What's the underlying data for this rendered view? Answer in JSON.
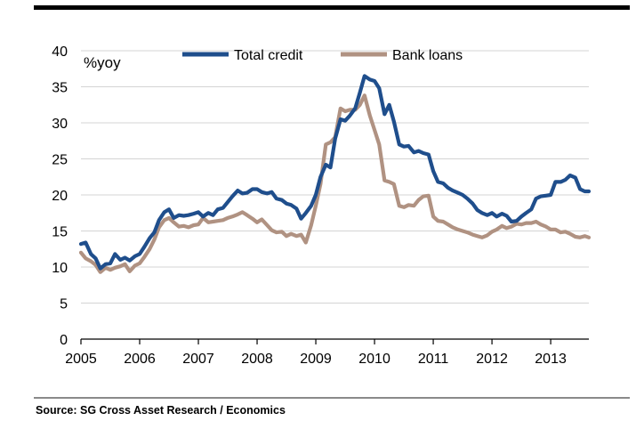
{
  "source": "Source: SG Cross Asset Research / Economics",
  "chart_data": {
    "type": "line",
    "title": "",
    "xlabel": "",
    "ylabel": "%yoy",
    "ylim": [
      0,
      40
    ],
    "yticks": [
      0,
      5,
      10,
      15,
      20,
      25,
      30,
      35,
      40
    ],
    "xlim": [
      2005,
      2013.65
    ],
    "xticks": [
      "2005",
      "2006",
      "2007",
      "2008",
      "2009",
      "2010",
      "2011",
      "2012",
      "2013"
    ],
    "grid": true,
    "legend": "top-center",
    "series": [
      {
        "name": "Total credit",
        "color": "#1f4e8c",
        "points": [
          [
            2005.0,
            13.2
          ],
          [
            2005.08,
            13.4
          ],
          [
            2005.17,
            11.8
          ],
          [
            2005.25,
            11.2
          ],
          [
            2005.33,
            9.8
          ],
          [
            2005.42,
            10.4
          ],
          [
            2005.5,
            10.5
          ],
          [
            2005.58,
            11.8
          ],
          [
            2005.67,
            11.0
          ],
          [
            2005.75,
            11.3
          ],
          [
            2005.83,
            10.9
          ],
          [
            2005.92,
            11.5
          ],
          [
            2006.0,
            11.8
          ],
          [
            2006.08,
            12.8
          ],
          [
            2006.17,
            14.0
          ],
          [
            2006.25,
            14.8
          ],
          [
            2006.33,
            16.5
          ],
          [
            2006.42,
            17.6
          ],
          [
            2006.5,
            18.0
          ],
          [
            2006.58,
            16.8
          ],
          [
            2006.67,
            17.2
          ],
          [
            2006.75,
            17.1
          ],
          [
            2006.83,
            17.2
          ],
          [
            2006.92,
            17.4
          ],
          [
            2007.0,
            17.6
          ],
          [
            2007.08,
            17.0
          ],
          [
            2007.17,
            17.5
          ],
          [
            2007.25,
            17.2
          ],
          [
            2007.33,
            18.0
          ],
          [
            2007.42,
            18.2
          ],
          [
            2007.5,
            19.0
          ],
          [
            2007.58,
            19.8
          ],
          [
            2007.67,
            20.6
          ],
          [
            2007.75,
            20.2
          ],
          [
            2007.83,
            20.3
          ],
          [
            2007.92,
            20.8
          ],
          [
            2008.0,
            20.8
          ],
          [
            2008.08,
            20.4
          ],
          [
            2008.17,
            20.2
          ],
          [
            2008.25,
            20.4
          ],
          [
            2008.33,
            19.5
          ],
          [
            2008.42,
            19.3
          ],
          [
            2008.5,
            18.8
          ],
          [
            2008.58,
            18.6
          ],
          [
            2008.67,
            18.1
          ],
          [
            2008.75,
            16.7
          ],
          [
            2008.83,
            17.5
          ],
          [
            2008.92,
            18.5
          ],
          [
            2009.0,
            20.0
          ],
          [
            2009.08,
            22.5
          ],
          [
            2009.17,
            24.2
          ],
          [
            2009.25,
            23.8
          ],
          [
            2009.33,
            27.8
          ],
          [
            2009.42,
            30.5
          ],
          [
            2009.5,
            30.3
          ],
          [
            2009.58,
            31.0
          ],
          [
            2009.67,
            32.0
          ],
          [
            2009.75,
            34.2
          ],
          [
            2009.83,
            36.5
          ],
          [
            2009.92,
            36.0
          ],
          [
            2010.0,
            35.8
          ],
          [
            2010.08,
            34.8
          ],
          [
            2010.17,
            31.2
          ],
          [
            2010.25,
            32.5
          ],
          [
            2010.33,
            30.2
          ],
          [
            2010.42,
            27.0
          ],
          [
            2010.5,
            26.7
          ],
          [
            2010.58,
            26.8
          ],
          [
            2010.67,
            25.9
          ],
          [
            2010.75,
            26.1
          ],
          [
            2010.83,
            25.8
          ],
          [
            2010.92,
            25.6
          ],
          [
            2011.0,
            23.3
          ],
          [
            2011.08,
            21.8
          ],
          [
            2011.17,
            21.6
          ],
          [
            2011.25,
            21.0
          ],
          [
            2011.33,
            20.6
          ],
          [
            2011.42,
            20.3
          ],
          [
            2011.5,
            20.0
          ],
          [
            2011.58,
            19.5
          ],
          [
            2011.67,
            18.8
          ],
          [
            2011.75,
            17.9
          ],
          [
            2011.83,
            17.5
          ],
          [
            2011.92,
            17.2
          ],
          [
            2012.0,
            17.5
          ],
          [
            2012.08,
            17.0
          ],
          [
            2012.17,
            17.4
          ],
          [
            2012.25,
            17.1
          ],
          [
            2012.33,
            16.3
          ],
          [
            2012.42,
            16.4
          ],
          [
            2012.5,
            17.0
          ],
          [
            2012.58,
            17.5
          ],
          [
            2012.67,
            18.0
          ],
          [
            2012.75,
            19.5
          ],
          [
            2012.83,
            19.8
          ],
          [
            2012.92,
            19.9
          ],
          [
            2013.0,
            20.0
          ],
          [
            2013.08,
            21.8
          ],
          [
            2013.17,
            21.8
          ],
          [
            2013.25,
            22.1
          ],
          [
            2013.33,
            22.7
          ],
          [
            2013.42,
            22.4
          ],
          [
            2013.5,
            20.8
          ],
          [
            2013.58,
            20.5
          ],
          [
            2013.65,
            20.5
          ]
        ]
      },
      {
        "name": "Bank loans",
        "color": "#b09282",
        "points": [
          [
            2005.0,
            12.0
          ],
          [
            2005.08,
            11.2
          ],
          [
            2005.17,
            10.8
          ],
          [
            2005.25,
            10.3
          ],
          [
            2005.33,
            9.3
          ],
          [
            2005.42,
            9.9
          ],
          [
            2005.5,
            9.6
          ],
          [
            2005.58,
            9.9
          ],
          [
            2005.67,
            10.1
          ],
          [
            2005.75,
            10.4
          ],
          [
            2005.83,
            9.4
          ],
          [
            2005.92,
            10.2
          ],
          [
            2006.0,
            10.5
          ],
          [
            2006.08,
            11.4
          ],
          [
            2006.17,
            12.5
          ],
          [
            2006.25,
            13.8
          ],
          [
            2006.33,
            15.5
          ],
          [
            2006.42,
            16.5
          ],
          [
            2006.5,
            16.8
          ],
          [
            2006.58,
            16.2
          ],
          [
            2006.67,
            15.6
          ],
          [
            2006.75,
            15.7
          ],
          [
            2006.83,
            15.5
          ],
          [
            2006.92,
            15.8
          ],
          [
            2007.0,
            15.9
          ],
          [
            2007.08,
            16.8
          ],
          [
            2007.17,
            16.2
          ],
          [
            2007.25,
            16.3
          ],
          [
            2007.33,
            16.4
          ],
          [
            2007.42,
            16.5
          ],
          [
            2007.5,
            16.8
          ],
          [
            2007.58,
            17.0
          ],
          [
            2007.67,
            17.3
          ],
          [
            2007.75,
            17.6
          ],
          [
            2007.83,
            17.2
          ],
          [
            2007.92,
            16.7
          ],
          [
            2008.0,
            16.2
          ],
          [
            2008.08,
            16.6
          ],
          [
            2008.17,
            15.8
          ],
          [
            2008.25,
            15.1
          ],
          [
            2008.33,
            14.8
          ],
          [
            2008.42,
            14.9
          ],
          [
            2008.5,
            14.3
          ],
          [
            2008.58,
            14.6
          ],
          [
            2008.67,
            14.3
          ],
          [
            2008.75,
            14.5
          ],
          [
            2008.83,
            13.4
          ],
          [
            2008.92,
            15.8
          ],
          [
            2009.0,
            18.5
          ],
          [
            2009.08,
            21.5
          ],
          [
            2009.17,
            27.0
          ],
          [
            2009.25,
            27.3
          ],
          [
            2009.33,
            28.0
          ],
          [
            2009.42,
            32.0
          ],
          [
            2009.5,
            31.6
          ],
          [
            2009.58,
            31.8
          ],
          [
            2009.67,
            31.8
          ],
          [
            2009.75,
            32.5
          ],
          [
            2009.83,
            33.8
          ],
          [
            2009.92,
            31.0
          ],
          [
            2010.0,
            29.0
          ],
          [
            2010.08,
            27.0
          ],
          [
            2010.17,
            22.0
          ],
          [
            2010.25,
            21.8
          ],
          [
            2010.33,
            21.5
          ],
          [
            2010.42,
            18.5
          ],
          [
            2010.5,
            18.3
          ],
          [
            2010.58,
            18.6
          ],
          [
            2010.67,
            18.5
          ],
          [
            2010.75,
            19.3
          ],
          [
            2010.83,
            19.8
          ],
          [
            2010.92,
            19.9
          ],
          [
            2011.0,
            17.0
          ],
          [
            2011.08,
            16.4
          ],
          [
            2011.17,
            16.3
          ],
          [
            2011.25,
            15.9
          ],
          [
            2011.33,
            15.5
          ],
          [
            2011.42,
            15.2
          ],
          [
            2011.5,
            15.0
          ],
          [
            2011.58,
            14.8
          ],
          [
            2011.67,
            14.5
          ],
          [
            2011.75,
            14.3
          ],
          [
            2011.83,
            14.1
          ],
          [
            2011.92,
            14.4
          ],
          [
            2012.0,
            14.9
          ],
          [
            2012.08,
            15.2
          ],
          [
            2012.17,
            15.7
          ],
          [
            2012.25,
            15.4
          ],
          [
            2012.33,
            15.6
          ],
          [
            2012.42,
            16.0
          ],
          [
            2012.5,
            15.9
          ],
          [
            2012.58,
            16.1
          ],
          [
            2012.67,
            16.1
          ],
          [
            2012.75,
            16.3
          ],
          [
            2012.83,
            15.9
          ],
          [
            2012.92,
            15.6
          ],
          [
            2013.0,
            15.2
          ],
          [
            2013.08,
            15.2
          ],
          [
            2013.17,
            14.8
          ],
          [
            2013.25,
            14.9
          ],
          [
            2013.33,
            14.6
          ],
          [
            2013.42,
            14.2
          ],
          [
            2013.5,
            14.1
          ],
          [
            2013.58,
            14.3
          ],
          [
            2013.65,
            14.1
          ]
        ]
      }
    ]
  }
}
